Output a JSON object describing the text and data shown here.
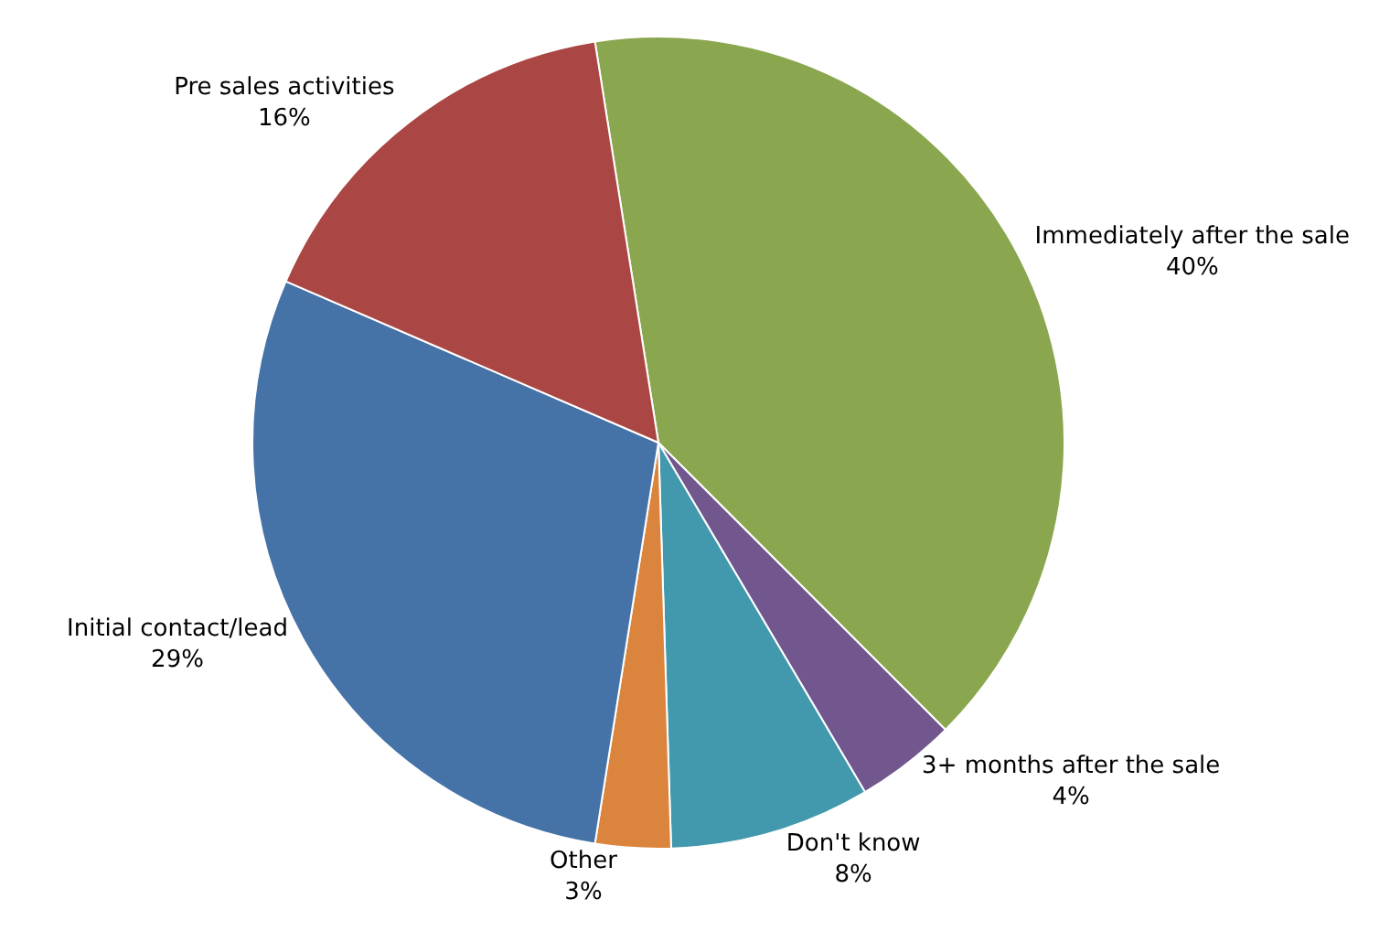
{
  "chart_data": {
    "type": "pie",
    "categories": [
      "Immediately after the sale",
      "3+ months after the sale",
      "Don't know",
      "Other",
      "Initial contact/lead",
      "Pre sales activities"
    ],
    "values": [
      40,
      4,
      8,
      3,
      29,
      16
    ],
    "value_labels": [
      "40%",
      "4%",
      "8%",
      "3%",
      "29%",
      "16%"
    ],
    "colors": [
      "#8aa64e",
      "#72578f",
      "#4298ad",
      "#db843d",
      "#4572a7",
      "#aa4643"
    ]
  }
}
